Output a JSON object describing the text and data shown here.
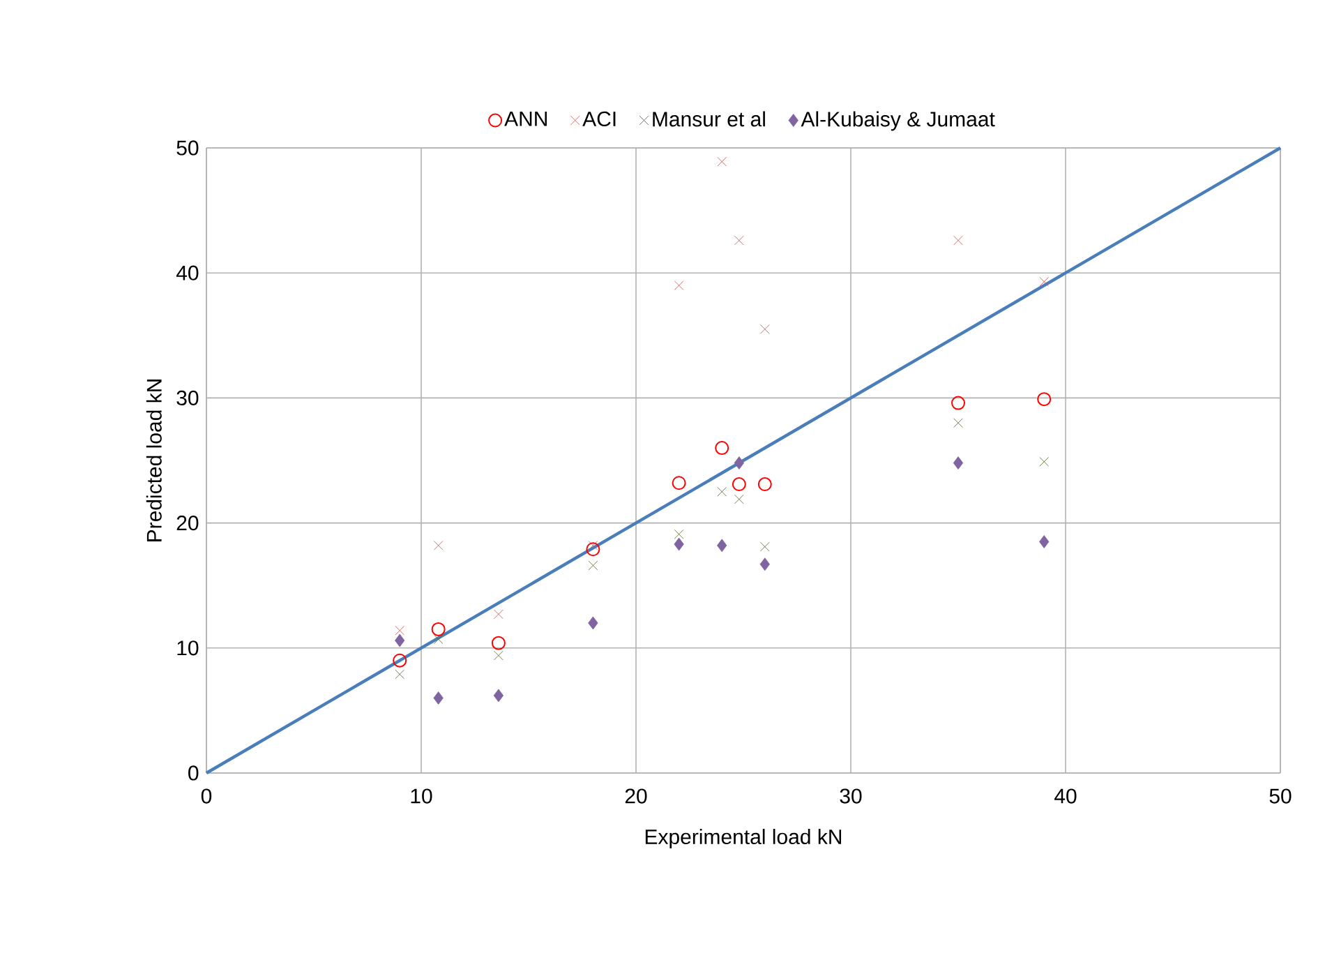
{
  "chart_data": {
    "type": "scatter",
    "xlabel": "Experimental load kN",
    "ylabel": "Predicted load kN",
    "xlim": [
      0,
      50
    ],
    "ylim": [
      0,
      50
    ],
    "xticks": [
      0,
      10,
      20,
      30,
      40,
      50
    ],
    "yticks": [
      0,
      10,
      20,
      30,
      40,
      50
    ],
    "grid": true,
    "legend": "top",
    "series": [
      {
        "name": "ANN",
        "color": "#ff0000",
        "marker": "circle",
        "x": [
          9,
          10.8,
          13.6,
          18,
          22,
          24,
          24.8,
          26,
          35,
          39
        ],
        "values": [
          9.0,
          11.5,
          10.4,
          17.9,
          23.2,
          26.0,
          23.1,
          23.1,
          29.6,
          29.9
        ]
      },
      {
        "name": "ACI",
        "color": "#c0504d",
        "marker": "cross",
        "x": [
          9,
          10.8,
          13.6,
          18,
          22,
          24,
          24.8,
          26,
          35,
          39
        ],
        "values": [
          11.4,
          18.2,
          12.7,
          18.2,
          39.0,
          48.9,
          42.6,
          35.5,
          42.6,
          39.3
        ]
      },
      {
        "name": "Mansur et al",
        "color": "#4f6228",
        "marker": "cross",
        "x": [
          9,
          10.8,
          13.6,
          18,
          22,
          24,
          24.8,
          26,
          35,
          39
        ],
        "values": [
          7.9,
          10.7,
          9.4,
          16.6,
          19.1,
          22.5,
          21.9,
          18.1,
          28.0,
          24.9
        ]
      },
      {
        "name": "Al-Kubaisy & Jumaat",
        "color": "#8064a2",
        "marker": "diamond",
        "x": [
          9,
          10.8,
          13.6,
          18,
          22,
          24,
          24.8,
          26,
          35,
          39
        ],
        "values": [
          10.6,
          6.0,
          6.2,
          12.0,
          18.3,
          18.2,
          24.8,
          16.7,
          24.8,
          18.5
        ]
      },
      {
        "type": "line",
        "color": "#4a7ebb",
        "marker": "none",
        "x": [
          0,
          50
        ],
        "values": [
          0,
          50
        ]
      }
    ]
  }
}
